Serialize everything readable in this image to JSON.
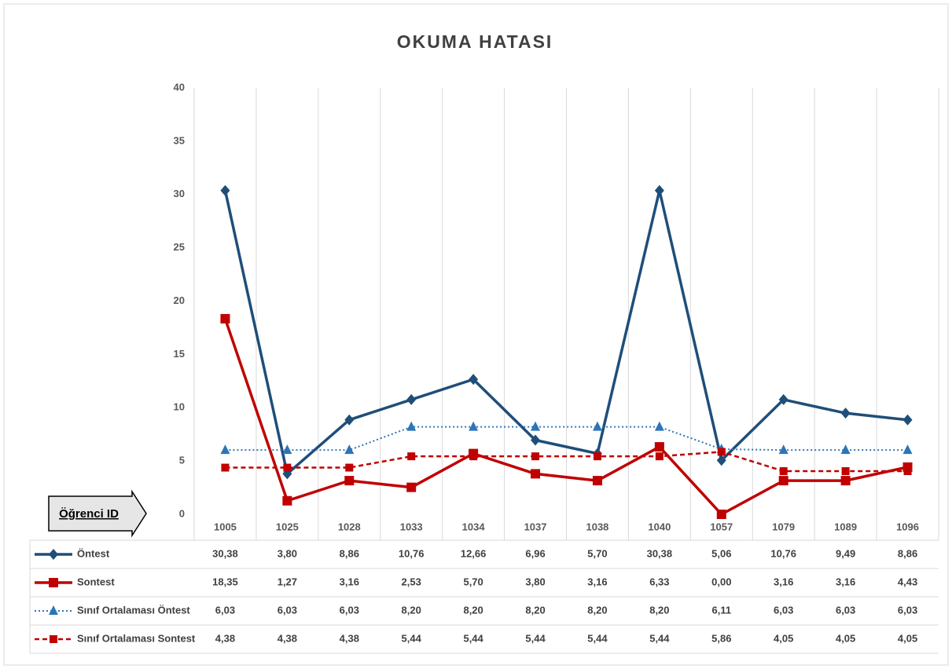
{
  "chart_data": {
    "type": "line",
    "title": "OKUMA HATASI",
    "x_label": "Öğrenci ID",
    "categories": [
      "1005",
      "1025",
      "1028",
      "1033",
      "1034",
      "1037",
      "1038",
      "1040",
      "1057",
      "1079",
      "1089",
      "1096"
    ],
    "ylim": [
      0,
      40
    ],
    "yticks": [
      0,
      5,
      10,
      15,
      20,
      25,
      30,
      35,
      40
    ],
    "grid": "x",
    "series": [
      {
        "name": "Öntest",
        "color": "#1f4e79",
        "dash": "solid",
        "marker": "diamond",
        "values": [
          30.38,
          3.8,
          8.86,
          10.76,
          12.66,
          6.96,
          5.7,
          30.38,
          5.06,
          10.76,
          9.49,
          8.86
        ],
        "value_labels": [
          "30,38",
          "3,80",
          "8,86",
          "10,76",
          "12,66",
          "6,96",
          "5,70",
          "30,38",
          "5,06",
          "10,76",
          "9,49",
          "8,86"
        ]
      },
      {
        "name": "Sontest",
        "color": "#c00000",
        "dash": "solid",
        "marker": "square",
        "values": [
          18.35,
          1.27,
          3.16,
          2.53,
          5.7,
          3.8,
          3.16,
          6.33,
          0.0,
          3.16,
          3.16,
          4.43
        ],
        "value_labels": [
          "18,35",
          "1,27",
          "3,16",
          "2,53",
          "5,70",
          "3,80",
          "3,16",
          "6,33",
          "0,00",
          "3,16",
          "3,16",
          "4,43"
        ]
      },
      {
        "name": "Sınıf Ortalaması Öntest",
        "color": "#2e75b6",
        "dash": "dotted",
        "marker": "triangle",
        "values": [
          6.03,
          6.03,
          6.03,
          8.2,
          8.2,
          8.2,
          8.2,
          8.2,
          6.11,
          6.03,
          6.03,
          6.03
        ],
        "value_labels": [
          "6,03",
          "6,03",
          "6,03",
          "8,20",
          "8,20",
          "8,20",
          "8,20",
          "8,20",
          "6,11",
          "6,03",
          "6,03",
          "6,03"
        ]
      },
      {
        "name": "Sınıf Ortalaması Sontest",
        "color": "#c00000",
        "dash": "dashed",
        "marker": "small-square",
        "values": [
          4.38,
          4.38,
          4.38,
          5.44,
          5.44,
          5.44,
          5.44,
          5.44,
          5.86,
          4.05,
          4.05,
          4.05
        ],
        "value_labels": [
          "4,38",
          "4,38",
          "4,38",
          "5,44",
          "5,44",
          "5,44",
          "5,44",
          "5,44",
          "5,86",
          "4,05",
          "4,05",
          "4,05"
        ]
      }
    ]
  }
}
